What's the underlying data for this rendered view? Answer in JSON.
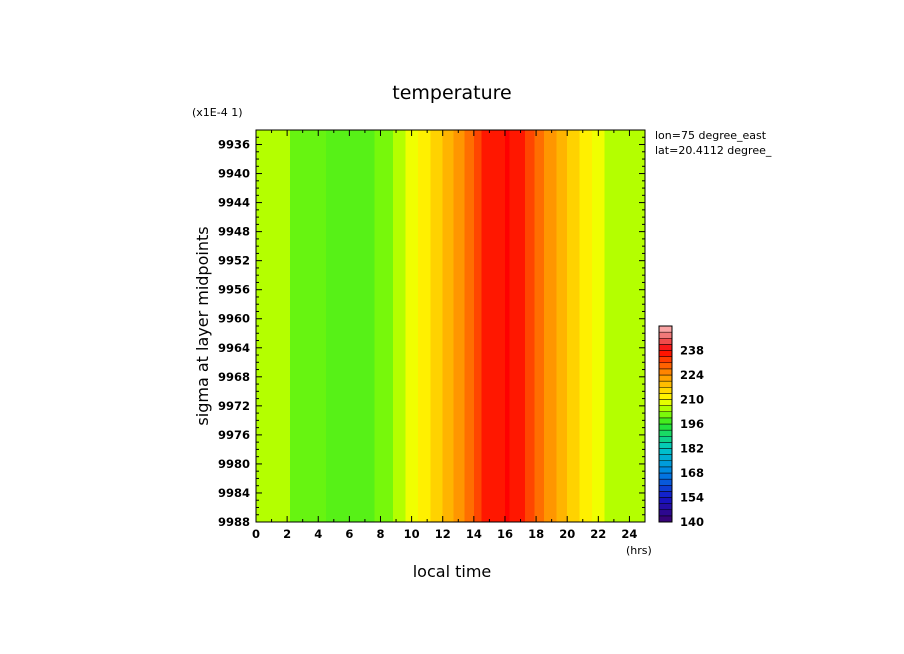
{
  "chart_data": {
    "type": "heatmap",
    "title": "temperature",
    "xlabel": "local time",
    "x_unit": "(hrs)",
    "ylabel": "sigma at layer midpoints",
    "y_scale_note": "(x1E-4 1)",
    "annotations": [
      "lon=75 degree_east",
      "lat=20.4112 degree_"
    ],
    "xlim": [
      0,
      25
    ],
    "ylim": [
      9934,
      9988
    ],
    "y_inverted": true,
    "x_ticks": [
      "0",
      "2",
      "4",
      "6",
      "8",
      "10",
      "12",
      "14",
      "16",
      "18",
      "20",
      "22",
      "24"
    ],
    "y_ticks": [
      "9936",
      "9940",
      "9944",
      "9948",
      "9952",
      "9956",
      "9960",
      "9964",
      "9968",
      "9972",
      "9976",
      "9980",
      "9984",
      "9988"
    ],
    "colorbar": {
      "min": 140,
      "max": 252,
      "step": 3.5,
      "labels": [
        "238",
        "224",
        "210",
        "196",
        "182",
        "168",
        "154",
        "140"
      ]
    },
    "bands": [
      {
        "x0": 0,
        "x1": 2.2,
        "value": 205
      },
      {
        "x0": 2.2,
        "x1": 4.5,
        "value": 200
      },
      {
        "x0": 4.5,
        "x1": 7.6,
        "value": 199
      },
      {
        "x0": 7.6,
        "x1": 8.8,
        "value": 201
      },
      {
        "x0": 8.8,
        "x1": 9.6,
        "value": 205
      },
      {
        "x0": 9.6,
        "x1": 10.4,
        "value": 209
      },
      {
        "x0": 10.4,
        "x1": 11.2,
        "value": 212
      },
      {
        "x0": 11.2,
        "x1": 12.0,
        "value": 216
      },
      {
        "x0": 12.0,
        "x1": 12.7,
        "value": 220
      },
      {
        "x0": 12.7,
        "x1": 13.4,
        "value": 224
      },
      {
        "x0": 13.4,
        "x1": 14.0,
        "value": 228
      },
      {
        "x0": 14.0,
        "x1": 14.5,
        "value": 232
      },
      {
        "x0": 14.5,
        "x1": 16.0,
        "value": 236
      },
      {
        "x0": 16.0,
        "x1": 16.3,
        "value": 238
      },
      {
        "x0": 16.3,
        "x1": 17.3,
        "value": 236
      },
      {
        "x0": 17.3,
        "x1": 17.9,
        "value": 232
      },
      {
        "x0": 17.9,
        "x1": 18.5,
        "value": 228
      },
      {
        "x0": 18.5,
        "x1": 19.3,
        "value": 224
      },
      {
        "x0": 19.3,
        "x1": 20.0,
        "value": 220
      },
      {
        "x0": 20.0,
        "x1": 20.8,
        "value": 216
      },
      {
        "x0": 20.8,
        "x1": 21.6,
        "value": 212
      },
      {
        "x0": 21.6,
        "x1": 22.4,
        "value": 209
      },
      {
        "x0": 22.4,
        "x1": 25,
        "value": 205
      }
    ]
  }
}
